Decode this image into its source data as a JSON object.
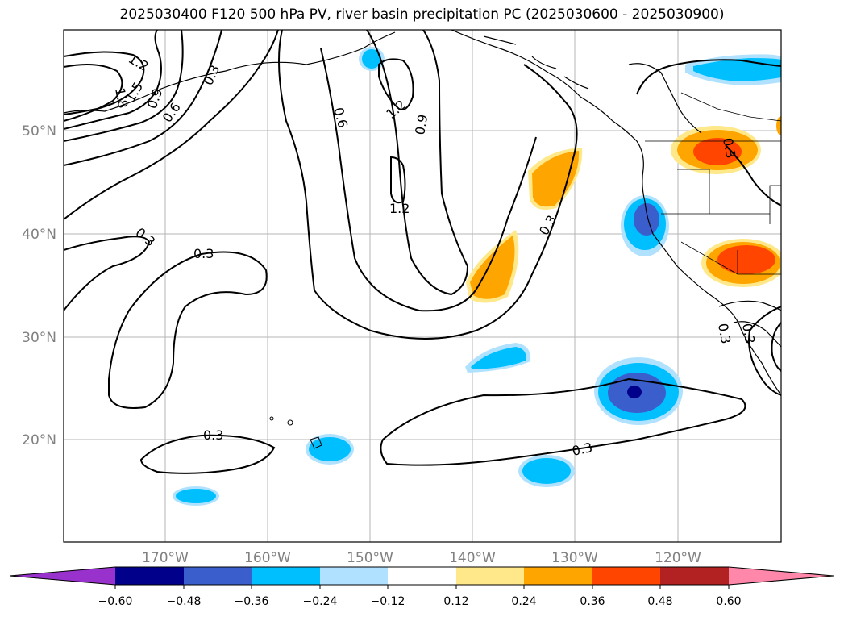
{
  "title": "2025030400 F120 500 hPa PV, river basin precipitation PC (2025030600 - 2025030900)",
  "map": {
    "lon_labels": [
      "170°W",
      "160°W",
      "150°W",
      "140°W",
      "130°W",
      "120°W"
    ],
    "lat_labels": [
      "50°N",
      "40°N",
      "30°N",
      "20°N"
    ],
    "contour_labels": [
      "1.2",
      "1.8",
      "1.5",
      "0.9",
      "0.6",
      "0.3",
      "0.6",
      "1.2",
      "0.9",
      "1.2",
      "0.3",
      "0.3",
      "0.3",
      "0.3",
      "0.3",
      "0.3",
      "0.3",
      "0.3"
    ],
    "gridlines": true
  },
  "colorbar": {
    "ticks": [
      "−0.60",
      "−0.48",
      "−0.36",
      "−0.24",
      "−0.12",
      "0.12",
      "0.24",
      "0.36",
      "0.48",
      "0.60"
    ],
    "colors": [
      "#9932cc",
      "#00008b",
      "#3a5fcd",
      "#00bfff",
      "#b0e2ff",
      "#ffffff",
      "#ffe88a",
      "#ffa500",
      "#ff4500",
      "#b22222",
      "#ff88aa"
    ]
  }
}
